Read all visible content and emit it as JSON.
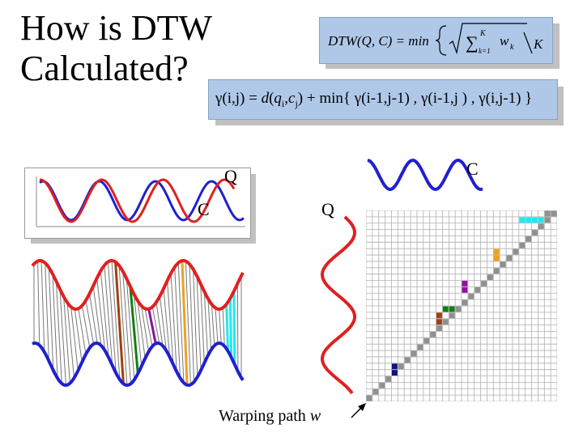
{
  "title": "How is DTW Calculated?",
  "formula": {
    "lhs": "DTW(Q, C) = min",
    "sum": "∑",
    "upper": "K",
    "lower": "k=1",
    "term": "w",
    "term_sub": "k",
    "denominator": "K"
  },
  "recurrence": {
    "gamma_ij": "γ(i,j)",
    "eq": " = ",
    "d": "d",
    "open": "(",
    "q": "q",
    "q_sub": "i",
    "comma": ",",
    "c": "c",
    "c_sub": "j",
    "close": ")",
    "plus_min": " + min{ ",
    "g1": "γ(i-1,j-1)",
    "sep1": " , ",
    "g2": "γ(i-1,j )",
    "sep2": " , ",
    "g3": "γ(i,j-1)",
    "end": " }"
  },
  "labels": {
    "q_small": "Q",
    "c_small": "C",
    "c_top": "C",
    "q_side": "Q",
    "warping": "Warping path ",
    "w": "w"
  },
  "colors": {
    "red": "#e02020",
    "blue": "#2020d0",
    "grid_line": "#b0b0b0",
    "path_cell": "#909090",
    "cyan": "#20e8f0",
    "orange": "#f0a020",
    "purple": "#9010a0",
    "green": "#108010",
    "brown": "#a04010",
    "navy": "#101080"
  },
  "matrix": {
    "rows": 30,
    "cols": 30
  }
}
